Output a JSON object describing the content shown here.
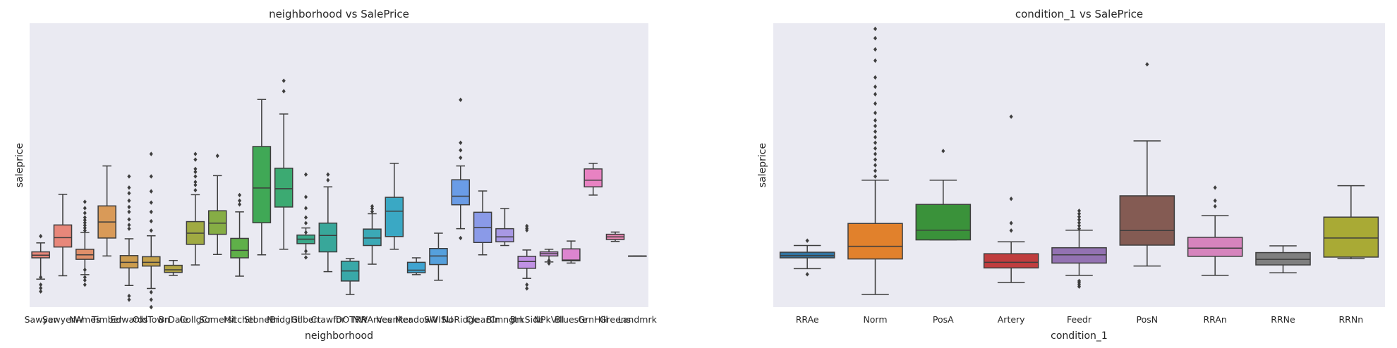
{
  "chart_data": [
    {
      "type": "box",
      "title": "neighborhood vs SalePrice",
      "xlabel": "neighborhood",
      "ylabel": "saleprice",
      "ylim": [
        0,
        760000
      ],
      "grid": false,
      "categories": [
        "Sawyer",
        "SawyerW",
        "NAmes",
        "Timber",
        "Edwards",
        "OldTown",
        "BrDale",
        "CollgCr",
        "Somerst",
        "Mitchel",
        "StoneBr",
        "NridgHt",
        "Gilbert",
        "Crawfor",
        "IDOTRR",
        "NWAmes",
        "Veenker",
        "MeadowV",
        "SWISU",
        "NoRidge",
        "ClearCr",
        "Blmngtn",
        "BrkSide",
        "NPkVill",
        "Blueste",
        "GrnHill",
        "Greens",
        "Landmrk"
      ],
      "colors": [
        "#e8877a",
        "#e8877a",
        "#e08f6a",
        "#d99a58",
        "#cc9c4e",
        "#c3a04a",
        "#b3a546",
        "#a0aa42",
        "#86ad45",
        "#5fb049",
        "#40a856",
        "#3caa72",
        "#3aa889",
        "#38a79a",
        "#39a8a8",
        "#3ba9b6",
        "#3aa8c4",
        "#40a4d1",
        "#55a0dd",
        "#6a9ce6",
        "#8a9ae8",
        "#a898e4",
        "#c091e4",
        "#cb8ed9",
        "#dc85cf",
        "#e882c2",
        "#ea86b3",
        "#f090a5"
      ],
      "boxes": [
        {
          "whislo": 75000,
          "q1": 132000,
          "med": 139000,
          "q3": 148000,
          "whishi": 172000,
          "fliers": [
            42000,
            51000,
            60000,
            80000,
            190000
          ]
        },
        {
          "whislo": 84000,
          "q1": 161000,
          "med": 186000,
          "q3": 220000,
          "whishi": 302000,
          "fliers": []
        },
        {
          "whislo": 87000,
          "q1": 128000,
          "med": 140000,
          "q3": 155000,
          "whishi": 200000,
          "fliers": [
            60000,
            72000,
            80000,
            100000,
            205000,
            212000,
            219000,
            226000,
            233000,
            240000,
            252000,
            265000,
            282000
          ]
        },
        {
          "whislo": 137000,
          "q1": 185000,
          "med": 228000,
          "q3": 271000,
          "whishi": 378000,
          "fliers": []
        },
        {
          "whislo": 58000,
          "q1": 105000,
          "med": 120000,
          "q3": 138000,
          "whishi": 183000,
          "fliers": [
            20000,
            30000,
            210000,
            220000,
            235000,
            255000,
            268000,
            285000,
            305000,
            320000,
            350000
          ]
        },
        {
          "whislo": 50000,
          "q1": 110000,
          "med": 120000,
          "q3": 135000,
          "whishi": 191000,
          "fliers": [
            0,
            20000,
            40000,
            205000,
            230000,
            255000,
            280000,
            310000,
            350000,
            410000
          ]
        },
        {
          "whislo": 85000,
          "q1": 93000,
          "med": 100000,
          "q3": 112000,
          "whishi": 125000,
          "fliers": []
        },
        {
          "whislo": 113000,
          "q1": 168000,
          "med": 198000,
          "q3": 229000,
          "whishi": 301000,
          "fliers": [
            313000,
            327000,
            335000,
            350000,
            362000,
            370000,
            395000,
            410000
          ]
        },
        {
          "whislo": 141000,
          "q1": 195000,
          "med": 225000,
          "q3": 258000,
          "whishi": 352000,
          "fliers": [
            405000
          ]
        },
        {
          "whislo": 83000,
          "q1": 132000,
          "med": 152000,
          "q3": 184000,
          "whishi": 255000,
          "fliers": [
            275000,
            285000,
            300000
          ]
        },
        {
          "whislo": 140000,
          "q1": 226000,
          "med": 319000,
          "q3": 430000,
          "whishi": 556000,
          "fliers": []
        },
        {
          "whislo": 155000,
          "q1": 268000,
          "med": 317000,
          "q3": 372000,
          "whishi": 517000,
          "fliers": [
            578000,
            606000
          ]
        },
        {
          "whislo": 142000,
          "q1": 170000,
          "med": 182000,
          "q3": 193000,
          "whishi": 212000,
          "fliers": [
            133000,
            150000,
            200000,
            225000,
            240000,
            265000,
            295000,
            355000
          ]
        },
        {
          "whislo": 95000,
          "q1": 148000,
          "med": 192000,
          "q3": 225000,
          "whishi": 322000,
          "fliers": [
            340000,
            355000
          ]
        },
        {
          "whislo": 34000,
          "q1": 70000,
          "med": 97000,
          "q3": 123000,
          "whishi": 130000,
          "fliers": []
        },
        {
          "whislo": 115000,
          "q1": 165000,
          "med": 185000,
          "q3": 209000,
          "whishi": 250000,
          "fliers": [
            256000,
            264000,
            270000
          ]
        },
        {
          "whislo": 155000,
          "q1": 189000,
          "med": 257000,
          "q3": 294000,
          "whishi": 385000,
          "fliers": []
        },
        {
          "whislo": 87000,
          "q1": 92000,
          "med": 99000,
          "q3": 120000,
          "whishi": 132000,
          "fliers": []
        },
        {
          "whislo": 72000,
          "q1": 114000,
          "med": 137000,
          "q3": 157000,
          "whishi": 198000,
          "fliers": []
        },
        {
          "whislo": 210000,
          "q1": 274000,
          "med": 297000,
          "q3": 341000,
          "whishi": 378000,
          "fliers": [
            185000,
            400000,
            420000,
            440000,
            555000
          ]
        },
        {
          "whislo": 140000,
          "q1": 173000,
          "med": 213000,
          "q3": 254000,
          "whishi": 311000,
          "fliers": []
        },
        {
          "whislo": 165000,
          "q1": 175000,
          "med": 188000,
          "q3": 210000,
          "whishi": 264000,
          "fliers": []
        },
        {
          "whislo": 77000,
          "q1": 104000,
          "med": 122000,
          "q3": 136000,
          "whishi": 153000,
          "fliers": [
            60000,
            50000,
            206000,
            211000,
            217000
          ]
        },
        {
          "whislo": 121000,
          "q1": 137000,
          "med": 143000,
          "q3": 148000,
          "whishi": 155000,
          "fliers": [
            117000,
            125000
          ]
        },
        {
          "whislo": 118000,
          "q1": 124000,
          "med": 126000,
          "q3": 156000,
          "whishi": 177000,
          "fliers": []
        },
        {
          "whislo": 300000,
          "q1": 322000,
          "med": 340000,
          "q3": 370000,
          "whishi": 385000,
          "fliers": []
        },
        {
          "whislo": 176000,
          "q1": 181000,
          "med": 188000,
          "q3": 195000,
          "whishi": 201000,
          "fliers": []
        },
        {
          "whislo": 137000,
          "q1": 137000,
          "med": 137000,
          "q3": 137000,
          "whishi": 137000,
          "fliers": []
        }
      ]
    },
    {
      "type": "box",
      "title": "condition_1 vs SalePrice",
      "xlabel": "condition_1",
      "ylabel": "saleprice",
      "ylim": [
        0,
        760000
      ],
      "grid": false,
      "categories": [
        "RRAe",
        "Norm",
        "PosA",
        "Artery",
        "Feedr",
        "PosN",
        "RRAn",
        "RRNe",
        "RRNn"
      ],
      "colors": [
        "#3274a1",
        "#e1812c",
        "#3a923a",
        "#c03d3e",
        "#9372b2",
        "#845b53",
        "#d684bd",
        "#7f7f7f",
        "#a9aa35"
      ],
      "boxes": [
        {
          "whislo": 103000,
          "q1": 132000,
          "med": 138000,
          "q3": 147000,
          "whishi": 165000,
          "fliers": [
            88000,
            178000
          ]
        },
        {
          "whislo": 34000,
          "q1": 129000,
          "med": 163000,
          "q3": 224000,
          "whishi": 340000,
          "fliers": [
            350000,
            365000,
            380000,
            395000,
            410000,
            425000,
            440000,
            455000,
            470000,
            485000,
            500000,
            520000,
            545000,
            570000,
            590000,
            615000,
            660000,
            690000,
            720000,
            745000
          ]
        },
        {
          "whislo": 180000,
          "q1": 180000,
          "med": 206000,
          "q3": 275000,
          "whishi": 340000,
          "fliers": [
            418000
          ]
        },
        {
          "whislo": 66000,
          "q1": 105000,
          "med": 120000,
          "q3": 143000,
          "whishi": 175000,
          "fliers": [
            205000,
            225000,
            290000,
            510000
          ]
        },
        {
          "whislo": 85000,
          "q1": 118000,
          "med": 140000,
          "q3": 159000,
          "whishi": 206000,
          "fliers": [
            55000,
            60000,
            65000,
            70000,
            210000,
            218000,
            226000,
            234000,
            242000,
            250000,
            258000
          ]
        },
        {
          "whislo": 110000,
          "q1": 166000,
          "med": 205000,
          "q3": 298000,
          "whishi": 445000,
          "fliers": [
            650000
          ]
        },
        {
          "whislo": 85000,
          "q1": 136000,
          "med": 158000,
          "q3": 187000,
          "whishi": 245000,
          "fliers": [
            270000,
            285000,
            320000
          ]
        },
        {
          "whislo": 92000,
          "q1": 113000,
          "med": 128000,
          "q3": 146000,
          "whishi": 164000,
          "fliers": []
        },
        {
          "whislo": 130000,
          "q1": 134000,
          "med": 185000,
          "q3": 241000,
          "whishi": 325000,
          "fliers": []
        }
      ]
    }
  ]
}
